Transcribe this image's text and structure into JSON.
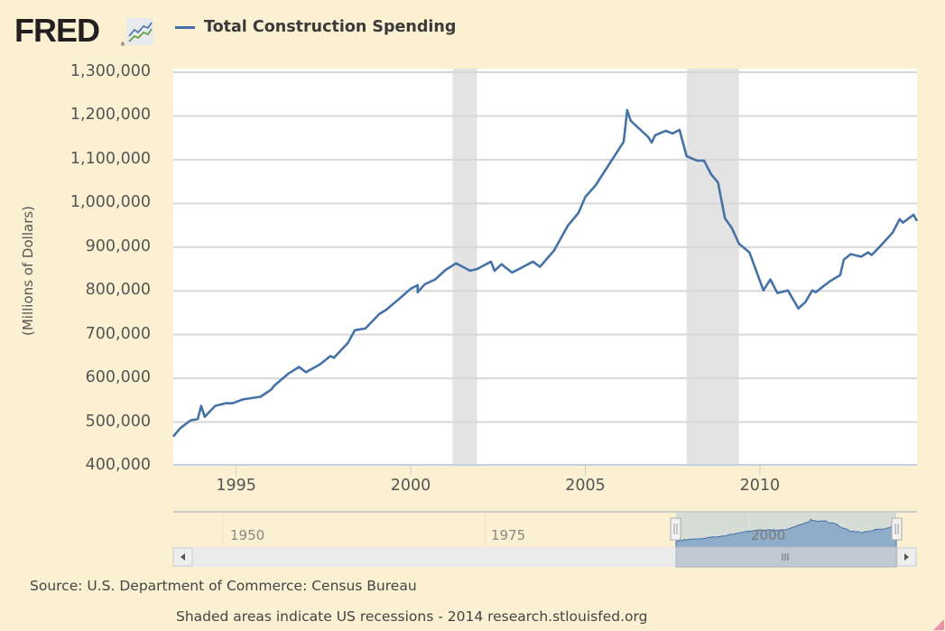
{
  "header": {
    "logo_text": "FRED",
    "logo_mark": "®",
    "legend_label": "Total Construction Spending"
  },
  "footer": {
    "source": "Source: U.S. Department of Commerce: Census Bureau",
    "note": "Shaded areas indicate US recessions - 2014 research.stlouisfed.org"
  },
  "navigator": {
    "tick_labels": [
      "1950",
      "1975",
      "2000"
    ],
    "scroll_left_icon": "arrow-left-icon",
    "scroll_right_icon": "arrow-right-icon",
    "handle_grip_icon": "grip-icon"
  },
  "colors": {
    "background": "#fcf0d2",
    "plot_background": "#ffffff",
    "series": "#4572a7",
    "recession": "#e3e3e3",
    "grid": "#d8d8d8"
  },
  "chart_data": {
    "type": "line",
    "title": "Total Construction Spending",
    "xlabel": "",
    "ylabel": "(Millions of Dollars)",
    "xlim": [
      1993.2,
      2014.5
    ],
    "ylim": [
      400000,
      1300000
    ],
    "grid": true,
    "legend": "top-left",
    "y_ticks": [
      400000,
      500000,
      600000,
      700000,
      800000,
      900000,
      1000000,
      1100000,
      1200000,
      1300000
    ],
    "y_tick_labels": [
      "400,000",
      "500,000",
      "600,000",
      "700,000",
      "800,000",
      "900,000",
      "1,000,000",
      "1,100,000",
      "1,200,000",
      "1,300,000"
    ],
    "x_ticks": [
      1995,
      2000,
      2005,
      2010
    ],
    "x_tick_labels": [
      "1995",
      "2000",
      "2005",
      "2010"
    ],
    "recessions": [
      [
        2001.2,
        2001.9
      ],
      [
        2007.9,
        2009.4
      ]
    ],
    "series": [
      {
        "name": "Total Construction Spending",
        "x": [
          1993.2,
          1993.4,
          1993.7,
          1993.9,
          1994.0,
          1994.1,
          1994.4,
          1994.7,
          1994.9,
          1995.2,
          1995.7,
          1996.0,
          1996.1,
          1996.5,
          1996.8,
          1997.0,
          1997.4,
          1997.7,
          1997.8,
          1998.2,
          1998.4,
          1998.7,
          1999.1,
          1999.3,
          1999.7,
          2000.0,
          2000.2,
          2000.2,
          2000.4,
          2000.7,
          2001.0,
          2001.3,
          2001.7,
          2001.9,
          2002.3,
          2002.4,
          2002.6,
          2002.9,
          2003.1,
          2003.5,
          2003.7,
          2004.1,
          2004.5,
          2004.8,
          2005.0,
          2005.3,
          2005.8,
          2006.1,
          2006.2,
          2006.3,
          2006.8,
          2006.9,
          2007.0,
          2007.3,
          2007.5,
          2007.7,
          2007.9,
          2008.2,
          2008.4,
          2008.6,
          2008.8,
          2009.0,
          2009.2,
          2009.4,
          2009.7,
          2010.1,
          2010.3,
          2010.5,
          2010.8,
          2011.1,
          2011.3,
          2011.5,
          2011.6,
          2012.0,
          2012.3,
          2012.4,
          2012.6,
          2012.9,
          2013.1,
          2013.2,
          2013.4,
          2013.8,
          2014.0,
          2014.1,
          2014.4,
          2014.5
        ],
        "values": [
          467000,
          486000,
          504000,
          507000,
          537000,
          512000,
          537000,
          543000,
          543000,
          552000,
          558000,
          574000,
          584000,
          611000,
          626000,
          614000,
          632000,
          651000,
          647000,
          681000,
          710000,
          714000,
          747000,
          757000,
          784000,
          805000,
          813000,
          797000,
          815000,
          826000,
          848000,
          863000,
          846000,
          850000,
          867000,
          846000,
          861000,
          842000,
          850000,
          867000,
          855000,
          892000,
          949000,
          978000,
          1015000,
          1042000,
          1104000,
          1141000,
          1213000,
          1189000,
          1152000,
          1139000,
          1156000,
          1166000,
          1160000,
          1168000,
          1108000,
          1098000,
          1098000,
          1067000,
          1048000,
          966000,
          943000,
          908000,
          888000,
          801000,
          826000,
          795000,
          801000,
          760000,
          774000,
          801000,
          797000,
          822000,
          836000,
          871000,
          884000,
          878000,
          888000,
          882000,
          898000,
          933000,
          964000,
          956000,
          974000,
          960000
        ]
      }
    ]
  }
}
